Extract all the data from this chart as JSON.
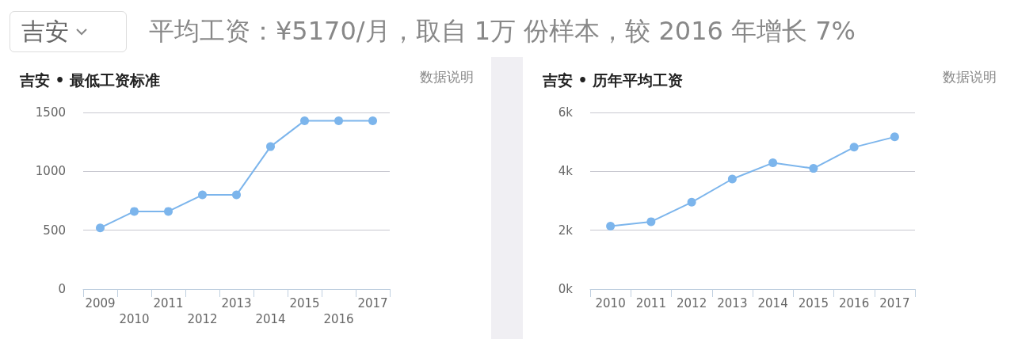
{
  "chart_data": [
    {
      "type": "other",
      "title": "平均工资：¥5170/月，取自 1万 份样本，较 2016 年增长 7%",
      "annotations": [
        "吉安"
      ]
    },
    {
      "type": "line",
      "title": "吉安 • 最低工资标准",
      "annotations": [
        "数据说明"
      ],
      "categories": [
        "2009",
        "2010",
        "2011",
        "2012",
        "2013",
        "2014",
        "2015",
        "2016",
        "2017"
      ],
      "values": [
        520,
        660,
        660,
        800,
        800,
        1210,
        1430,
        1430,
        1430
      ],
      "color": "#7cb5ec",
      "ylim": [
        0,
        1500
      ],
      "yticks": [
        0,
        500,
        1000,
        1500
      ],
      "grid": "y",
      "marker": "circle"
    },
    {
      "type": "line",
      "title": "吉安 • 历年平均工资",
      "annotations": [
        "数据说明"
      ],
      "categories": [
        "2010",
        "2011",
        "2012",
        "2013",
        "2014",
        "2015",
        "2016",
        "2017"
      ],
      "values": [
        2140,
        2290,
        2950,
        3740,
        4290,
        4100,
        4820,
        5170
      ],
      "color": "#7cb5ec",
      "ylim": [
        0,
        6000
      ],
      "yticks": [
        {
          "value": 0,
          "label": "0k"
        },
        {
          "value": 2000,
          "label": "2k"
        },
        {
          "value": 4000,
          "label": "4k"
        },
        {
          "value": 6000,
          "label": "6k"
        }
      ],
      "grid": "y",
      "marker": "circle"
    }
  ]
}
